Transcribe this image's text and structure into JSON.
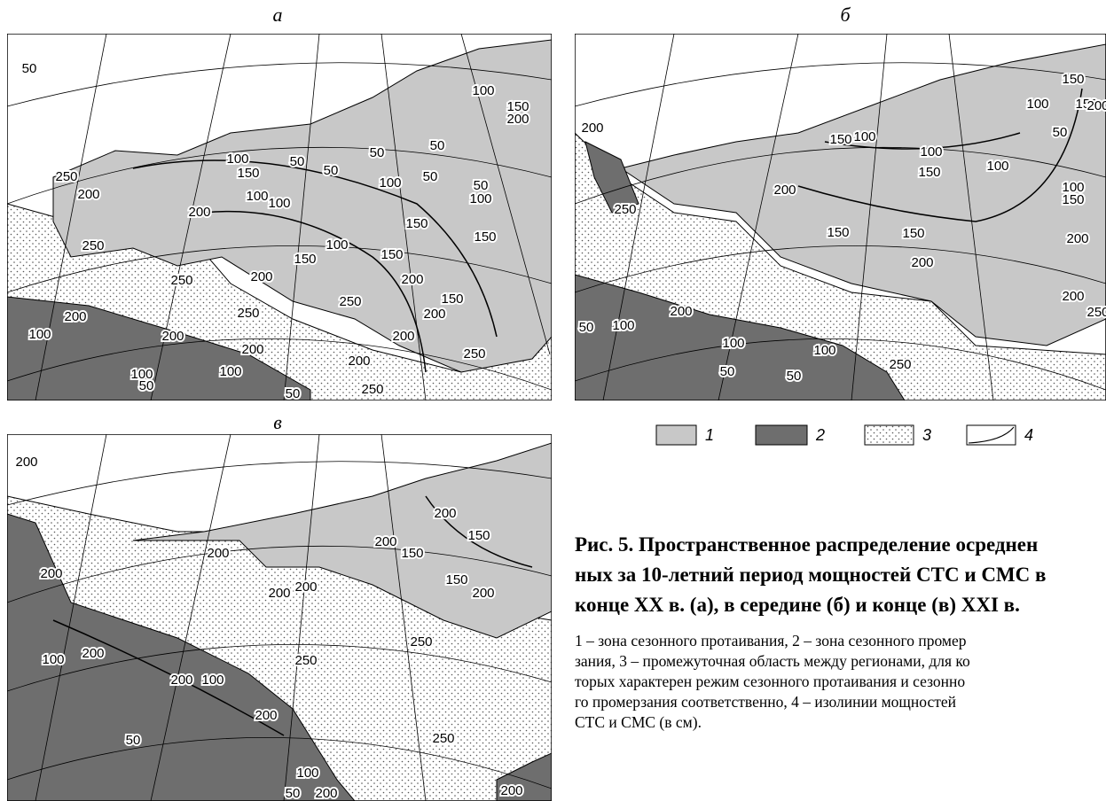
{
  "panels": [
    {
      "label": "а",
      "contours": [
        50,
        100,
        150,
        200,
        100,
        50,
        50,
        50,
        50,
        250,
        200,
        150,
        100,
        50,
        50,
        100,
        200,
        100,
        100,
        150,
        150,
        250,
        100,
        150,
        150,
        250,
        200,
        200,
        250,
        150,
        200,
        250,
        200,
        100,
        200,
        200,
        200,
        250,
        200,
        100,
        100,
        50,
        250,
        50
      ]
    },
    {
      "label": "б",
      "contours": [
        150,
        100,
        150,
        200,
        200,
        50,
        150,
        100,
        100,
        150,
        100,
        200,
        100,
        150,
        250,
        150,
        150,
        200,
        200,
        200,
        200,
        250,
        50,
        100,
        100,
        100,
        50,
        50,
        250
      ]
    },
    {
      "label": "в",
      "contours": [
        200,
        200,
        150,
        200,
        200,
        150,
        200,
        150,
        200,
        200,
        200,
        250,
        250,
        100,
        200,
        200,
        100,
        200,
        250,
        50,
        100,
        50,
        200,
        200
      ]
    }
  ],
  "legend": {
    "items": [
      1,
      2,
      3,
      4
    ]
  },
  "caption": {
    "title": [
      "Рис. 5. Пространственное распределение осреднен",
      "ных за 10-летний период мощностей СТС и СМС в",
      "конце XX в. (а), в середине (б) и конце (в) XXI в."
    ],
    "text": [
      "1 – зона сезонного протаивания, 2 – зона сезонного промер",
      "зания, 3 – промежуточная область между регионами, для ко",
      "торых характерен режим сезонного протаивания и сезонно",
      "го промерзания соответственно, 4 – изолинии мощностей",
      "СТС и СМС (в см)."
    ]
  }
}
